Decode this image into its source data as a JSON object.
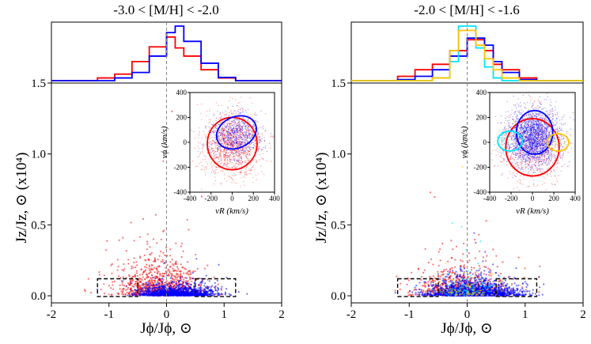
{
  "figure": {
    "panels": [
      {
        "title": "-3.0 < [M/H] < -2.0",
        "xlabel": "Jϕ/Jϕ, ⊙",
        "ylabel": "Jz/Jz, ⊙ (x10⁴)"
      },
      {
        "title": "-2.0 < [M/H] < -1.6",
        "xlabel": "Jϕ/Jϕ, ⊙",
        "ylabel": "Jz/Jz, ⊙ (x10⁴)"
      }
    ],
    "inset_xlabel": "vR (km/s)",
    "inset_ylabel": "vϕ (km/s)"
  },
  "chart_data": [
    {
      "type": "scatter",
      "title": "-3.0 < [M/H] < -2.0",
      "xlabel": "Jϕ/Jϕ, ⊙",
      "ylabel": "Jz/Jz, ⊙ (x10⁴)",
      "xlim": [
        -2,
        2
      ],
      "ylim": [
        -0.05,
        1.5
      ],
      "xticks": [
        "-2",
        "-1",
        "0",
        "1",
        "2"
      ],
      "yticks": [
        "0.0",
        "0.5",
        "1.0",
        "1.5"
      ],
      "vline_x": 0,
      "boxes": [
        {
          "x": [
            -1.2,
            -0.5
          ],
          "y": [
            -0.005,
            0.12
          ]
        },
        {
          "x": [
            0.5,
            1.2
          ],
          "y": [
            -0.005,
            0.12
          ]
        }
      ],
      "scatter_series": [
        {
          "name": "red",
          "color": "#ff0000",
          "n": 900,
          "jphi_mean": -0.1,
          "jphi_sd": 0.38,
          "jz_scale": 0.09
        },
        {
          "name": "blue",
          "color": "#0000ff",
          "n": 1300,
          "jphi_mean": 0.18,
          "jphi_sd": 0.33,
          "jz_scale": 0.025
        }
      ],
      "histogram": {
        "bin_edges": [
          -2.0,
          -1.2,
          -0.9,
          -0.6,
          -0.3,
          0.0,
          0.15,
          0.3,
          0.6,
          0.9,
          1.2,
          2.0
        ],
        "series": [
          {
            "name": "red",
            "color": "#ff0000",
            "values": [
              0.0,
              0.05,
              0.12,
              0.35,
              0.62,
              0.8,
              0.6,
              0.45,
              0.2,
              0.05,
              0.0
            ]
          },
          {
            "name": "blue",
            "color": "#0000ff",
            "values": [
              0.0,
              0.0,
              0.05,
              0.15,
              0.45,
              0.88,
              1.0,
              0.72,
              0.32,
              0.06,
              0.0
            ]
          }
        ]
      },
      "inset": {
        "type": "scatter",
        "xlabel": "vR (km/s)",
        "ylabel": "vϕ (km/s)",
        "xlim": [
          -400,
          400
        ],
        "ylim": [
          -400,
          400
        ],
        "ticks": [
          "-400",
          "-200",
          "0",
          "200",
          "400"
        ],
        "scatter_series": [
          {
            "name": "red",
            "color": "#ff0000",
            "n": 1300,
            "cx": 0,
            "cy": -20,
            "sx": 140,
            "sy": 130
          },
          {
            "name": "blue",
            "color": "#0000ff",
            "n": 700,
            "cx": 40,
            "cy": 60,
            "sx": 120,
            "sy": 90
          }
        ],
        "ellipses": [
          {
            "name": "red",
            "color": "#ff0000",
            "cx": 0,
            "cy": -10,
            "rx": 235,
            "ry": 210,
            "angle": 0
          },
          {
            "name": "blue",
            "color": "#0000ff",
            "cx": 40,
            "cy": 80,
            "rx": 195,
            "ry": 125,
            "angle": 25
          }
        ]
      }
    },
    {
      "type": "scatter",
      "title": "-2.0 < [M/H] < -1.6",
      "xlabel": "Jϕ/Jϕ, ⊙",
      "ylabel": "Jz/Jz, ⊙ (x10⁴)",
      "xlim": [
        -2,
        2
      ],
      "ylim": [
        -0.05,
        1.5
      ],
      "xticks": [
        "-2",
        "-1",
        "0",
        "1",
        "2"
      ],
      "yticks": [
        "0.0",
        "0.5",
        "1.0",
        "1.5"
      ],
      "vline_x": 0,
      "boxes": [
        {
          "x": [
            -1.2,
            -0.5
          ],
          "y": [
            -0.005,
            0.12
          ]
        },
        {
          "x": [
            0.5,
            1.2
          ],
          "y": [
            -0.005,
            0.12
          ]
        }
      ],
      "scatter_series": [
        {
          "name": "red",
          "color": "#ff0000",
          "n": 700,
          "jphi_mean": -0.1,
          "jphi_sd": 0.4,
          "jz_scale": 0.07
        },
        {
          "name": "blue",
          "color": "#0000ff",
          "n": 2200,
          "jphi_mean": 0.12,
          "jphi_sd": 0.36,
          "jz_scale": 0.03
        },
        {
          "name": "cyan",
          "color": "#00e5ff",
          "n": 120,
          "jphi_mean": 0.0,
          "jphi_sd": 0.3,
          "jz_scale": 0.06
        },
        {
          "name": "gold",
          "color": "#ffc400",
          "n": 120,
          "jphi_mean": 0.05,
          "jphi_sd": 0.3,
          "jz_scale": 0.05
        }
      ],
      "histogram": {
        "bin_edges": [
          -2.0,
          -1.2,
          -0.9,
          -0.6,
          -0.3,
          -0.15,
          0.0,
          0.15,
          0.3,
          0.45,
          0.6,
          0.9,
          1.2,
          2.0
        ],
        "series": [
          {
            "name": "red",
            "color": "#ff0000",
            "values": [
              0.0,
              0.08,
              0.2,
              0.3,
              0.55,
              0.55,
              0.75,
              0.75,
              0.55,
              0.3,
              0.2,
              0.05,
              0.0
            ]
          },
          {
            "name": "blue",
            "color": "#0000ff",
            "values": [
              0.0,
              0.02,
              0.08,
              0.2,
              0.45,
              0.45,
              0.78,
              0.78,
              0.65,
              0.35,
              0.15,
              0.02,
              0.0
            ]
          },
          {
            "name": "cyan",
            "color": "#00e5ff",
            "values": [
              0.0,
              0.0,
              0.0,
              0.05,
              0.35,
              1.0,
              1.0,
              0.6,
              0.25,
              0.05,
              0.0,
              0.0,
              0.0
            ]
          },
          {
            "name": "gold",
            "color": "#ffc400",
            "values": [
              0.0,
              0.0,
              0.0,
              0.05,
              0.55,
              0.92,
              0.92,
              0.65,
              0.4,
              0.2,
              0.05,
              0.0,
              0.0
            ]
          }
        ]
      },
      "inset": {
        "type": "scatter",
        "xlabel": "vR (km/s)",
        "ylabel": "vϕ (km/s)",
        "xlim": [
          -400,
          400
        ],
        "ylim": [
          -400,
          400
        ],
        "ticks": [
          "-400",
          "-200",
          "0",
          "200",
          "400"
        ],
        "scatter_series": [
          {
            "name": "red",
            "color": "#ff0000",
            "n": 900,
            "cx": 0,
            "cy": -30,
            "sx": 150,
            "sy": 140
          },
          {
            "name": "blue",
            "color": "#0000ff",
            "n": 2200,
            "cx": 10,
            "cy": 40,
            "sx": 120,
            "sy": 110
          },
          {
            "name": "cyan",
            "color": "#00e5ff",
            "n": 60,
            "cx": -240,
            "cy": 0,
            "sx": 40,
            "sy": 50
          },
          {
            "name": "gold",
            "color": "#ffc400",
            "n": 60,
            "cx": 240,
            "cy": 0,
            "sx": 40,
            "sy": 40
          }
        ],
        "ellipses": [
          {
            "name": "red",
            "color": "#ff0000",
            "cx": 0,
            "cy": -40,
            "rx": 250,
            "ry": 230,
            "angle": 0
          },
          {
            "name": "blue",
            "color": "#0000ff",
            "cx": 20,
            "cy": 80,
            "rx": 170,
            "ry": 175,
            "angle": 0
          },
          {
            "name": "cyan",
            "color": "#00e5ff",
            "cx": -210,
            "cy": 10,
            "rx": 115,
            "ry": 80,
            "angle": 0
          },
          {
            "name": "gold",
            "color": "#ffc400",
            "cx": 240,
            "cy": 0,
            "rx": 100,
            "ry": 70,
            "angle": 0
          }
        ]
      }
    }
  ]
}
